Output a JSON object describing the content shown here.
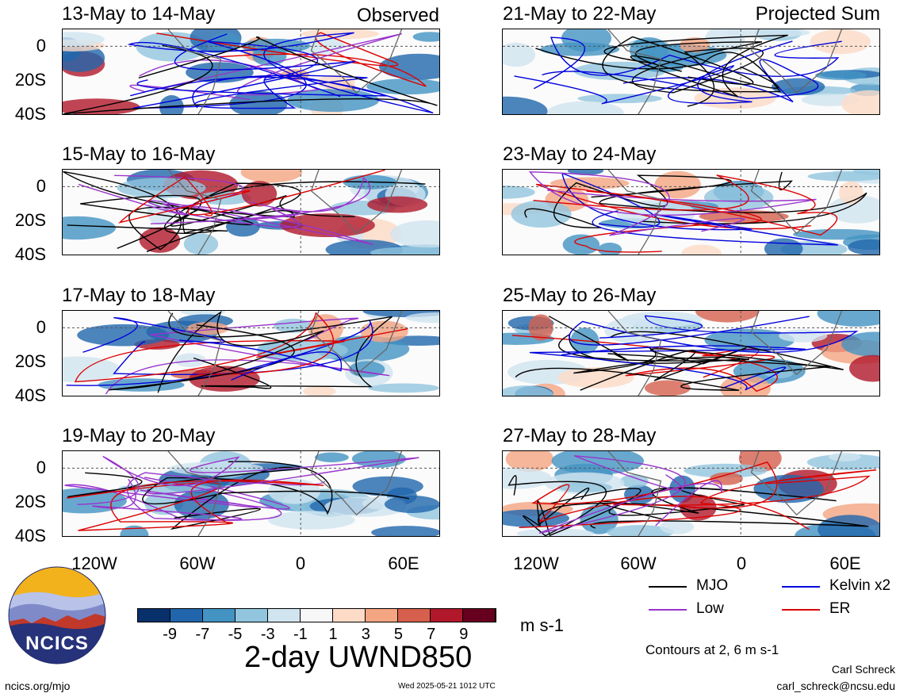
{
  "panels": [
    {
      "title": "13-May to 14-May",
      "tag": "Observed"
    },
    {
      "title": "15-May to 16-May",
      "tag": ""
    },
    {
      "title": "17-May to 18-May",
      "tag": ""
    },
    {
      "title": "19-May to 20-May",
      "tag": ""
    },
    {
      "title": "21-May to 22-May",
      "tag": "Projected Sum"
    },
    {
      "title": "23-May to 24-May",
      "tag": ""
    },
    {
      "title": "25-May to 26-May",
      "tag": ""
    },
    {
      "title": "27-May to 28-May",
      "tag": ""
    }
  ],
  "lat_ticks": [
    "0",
    "20S",
    "40S"
  ],
  "lon_ticks": [
    "120W",
    "60W",
    "0",
    "60E"
  ],
  "colorbar": {
    "labels": [
      "-9",
      "-7",
      "-5",
      "-3",
      "-1",
      "1",
      "3",
      "5",
      "7",
      "9"
    ],
    "colors": [
      "#08306b",
      "#2166ac",
      "#4393c3",
      "#92c5de",
      "#d1e5f0",
      "#f7f7f7",
      "#fddbc7",
      "#f4a582",
      "#d6604d",
      "#b2182b",
      "#67001f"
    ],
    "units": "m s-1"
  },
  "main_title": "2-day UWND850",
  "legend": {
    "items": [
      {
        "label": "MJO",
        "color": "#000000"
      },
      {
        "label": "Kelvin x2",
        "color": "#0000dd"
      },
      {
        "label": "Low",
        "color": "#9933cc"
      },
      {
        "label": "ER",
        "color": "#dd0000"
      }
    ],
    "contours": "Contours at 2, 6 m s-1"
  },
  "logo_text": "NCICS",
  "footer": {
    "url": "ncics.org/mjo",
    "timestamp": "Wed 2025-05-21 1012 UTC",
    "author": "Carl Schreck",
    "email": "carl_schreck@ncsu.edu"
  }
}
